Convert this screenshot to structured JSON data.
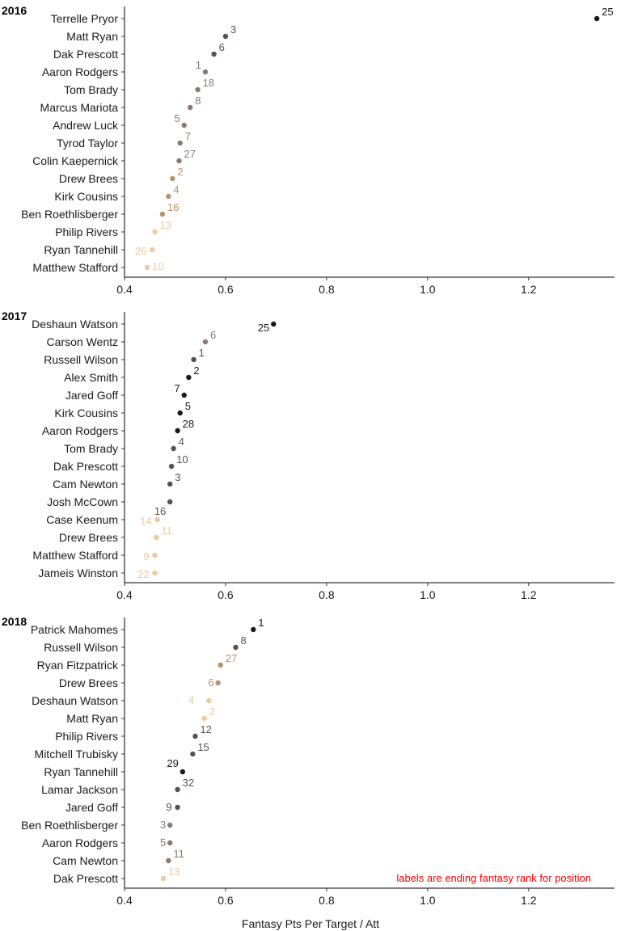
{
  "chart_data": {
    "type": "scatter",
    "xlabel": "Fantasy Pts Per Target / Att",
    "xlim": [
      0.4,
      1.37
    ],
    "xticks": [
      "0.4",
      "0.6",
      "0.8",
      "1.0",
      "1.2"
    ],
    "xtick_values": [
      0.4,
      0.6,
      0.8,
      1.0,
      1.2
    ],
    "grid": false,
    "caption": "labels are ending fantasy rank for position",
    "color_scale": [
      "#f0c8a0",
      "#b8926e",
      "#8a7a72",
      "#5a504c",
      "#1a1a1a"
    ],
    "panels": [
      {
        "title": "2016",
        "points": [
          {
            "name": "Terrelle Pryor",
            "x": 1.335,
            "rank": "25",
            "shade": 4
          },
          {
            "name": "Matt Ryan",
            "x": 0.6,
            "rank": "3",
            "shade": 3
          },
          {
            "name": "Dak Prescott",
            "x": 0.577,
            "rank": "6",
            "shade": 3
          },
          {
            "name": "Aaron Rodgers",
            "x": 0.56,
            "rank": "1",
            "shade": 2
          },
          {
            "name": "Tom Brady",
            "x": 0.545,
            "rank": "18",
            "shade": 2
          },
          {
            "name": "Marcus Mariota",
            "x": 0.53,
            "rank": "8",
            "shade": 2
          },
          {
            "name": "Andrew Luck",
            "x": 0.518,
            "rank": "5",
            "shade": 2
          },
          {
            "name": "Tyrod Taylor",
            "x": 0.51,
            "rank": "7",
            "shade": 2
          },
          {
            "name": "Colin Kaepernick",
            "x": 0.508,
            "rank": "27",
            "shade": 2
          },
          {
            "name": "Drew Brees",
            "x": 0.495,
            "rank": "2",
            "shade": 1
          },
          {
            "name": "Kirk Cousins",
            "x": 0.487,
            "rank": "4",
            "shade": 1
          },
          {
            "name": "Ben Roethlisberger",
            "x": 0.475,
            "rank": "16",
            "shade": 1
          },
          {
            "name": "Philip Rivers",
            "x": 0.46,
            "rank": "13",
            "shade": 0
          },
          {
            "name": "Ryan Tannehill",
            "x": 0.455,
            "rank": "26",
            "shade": 0
          },
          {
            "name": "Matthew Stafford",
            "x": 0.445,
            "rank": "10",
            "shade": 0
          }
        ]
      },
      {
        "title": "2017",
        "points": [
          {
            "name": "Deshaun Watson",
            "x": 0.695,
            "rank": "25",
            "shade": 4
          },
          {
            "name": "Carson Wentz",
            "x": 0.56,
            "rank": "6",
            "shade": 2
          },
          {
            "name": "Russell Wilson",
            "x": 0.537,
            "rank": "1",
            "shade": 3
          },
          {
            "name": "Alex Smith",
            "x": 0.527,
            "rank": "2",
            "shade": 4
          },
          {
            "name": "Jared Goff",
            "x": 0.518,
            "rank": "7",
            "shade": 4
          },
          {
            "name": "Kirk Cousins",
            "x": 0.51,
            "rank": "5",
            "shade": 4
          },
          {
            "name": "Aaron Rodgers",
            "x": 0.505,
            "rank": "28",
            "shade": 4
          },
          {
            "name": "Tom Brady",
            "x": 0.497,
            "rank": "4",
            "shade": 3
          },
          {
            "name": "Dak Prescott",
            "x": 0.493,
            "rank": "10",
            "shade": 3
          },
          {
            "name": "Cam Newton",
            "x": 0.49,
            "rank": "3",
            "shade": 3
          },
          {
            "name": "Josh McCown",
            "x": 0.49,
            "rank": "16",
            "shade": 3
          },
          {
            "name": "Case Keenum",
            "x": 0.465,
            "rank": "14",
            "shade": 0
          },
          {
            "name": "Drew Brees",
            "x": 0.463,
            "rank": "11",
            "shade": 0
          },
          {
            "name": "Matthew Stafford",
            "x": 0.46,
            "rank": "9",
            "shade": 0
          },
          {
            "name": "Jameis Winston",
            "x": 0.46,
            "rank": "22",
            "shade": 0
          }
        ]
      },
      {
        "title": "2018",
        "points": [
          {
            "name": "Patrick Mahomes",
            "x": 0.655,
            "rank": "1",
            "shade": 4
          },
          {
            "name": "Russell Wilson",
            "x": 0.62,
            "rank": "8",
            "shade": 3
          },
          {
            "name": "Ryan Fitzpatrick",
            "x": 0.59,
            "rank": "27",
            "shade": 1
          },
          {
            "name": "Drew Brees",
            "x": 0.585,
            "rank": "6",
            "shade": 1
          },
          {
            "name": "Deshaun Watson",
            "x": 0.567,
            "rank": "4",
            "shade": 0
          },
          {
            "name": "Matt Ryan",
            "x": 0.558,
            "rank": "2",
            "shade": 0
          },
          {
            "name": "Philip Rivers",
            "x": 0.54,
            "rank": "12",
            "shade": 3
          },
          {
            "name": "Mitchell Trubisky",
            "x": 0.535,
            "rank": "15",
            "shade": 3
          },
          {
            "name": "Ryan Tannehill",
            "x": 0.515,
            "rank": "29",
            "shade": 4
          },
          {
            "name": "Lamar Jackson",
            "x": 0.505,
            "rank": "32",
            "shade": 3
          },
          {
            "name": "Jared Goff",
            "x": 0.505,
            "rank": "9",
            "shade": 3
          },
          {
            "name": "Ben Roethlisberger",
            "x": 0.49,
            "rank": "3",
            "shade": 2
          },
          {
            "name": "Aaron Rodgers",
            "x": 0.49,
            "rank": "5",
            "shade": 2
          },
          {
            "name": "Cam Newton",
            "x": 0.487,
            "rank": "11",
            "shade": 2
          },
          {
            "name": "Dak Prescott",
            "x": 0.477,
            "rank": "13",
            "shade": 0
          }
        ]
      }
    ]
  }
}
